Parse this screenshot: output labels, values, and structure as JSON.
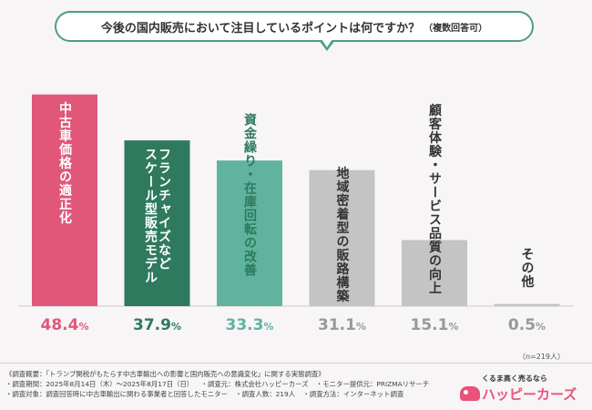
{
  "title": "今後の国内販売において注目しているポイントは何ですか？",
  "title_note": "（複数回答可）",
  "chart_data": {
    "type": "bar",
    "categories": [
      "中古車価格の適正化",
      "フランチャイズなどスケール型販売モデル",
      "資金繰り・在庫回転の改善",
      "地域密着型の販路構築",
      "顧客体験・サービス品質の向上",
      "その他"
    ],
    "label_lines": [
      [
        "中古車価格の適正化"
      ],
      [
        "フランチャイズなど",
        "スケール型販売モデル"
      ],
      [
        "資金繰り・在庫回転の改善"
      ],
      [
        "地域密着型の販路構築"
      ],
      [
        "顧客体験・サービス品質の向上"
      ],
      [
        "その他"
      ]
    ],
    "values": [
      48.4,
      37.9,
      33.3,
      31.1,
      15.1,
      0.5
    ],
    "value_labels": [
      "48.4%",
      "37.9%",
      "33.3%",
      "31.1%",
      "15.1%",
      "0.5%"
    ],
    "colors": [
      "#e0577a",
      "#2f7a5e",
      "#5fb39f",
      "#c4c4c4",
      "#c4c4c4",
      "#c4c4c4"
    ],
    "label_colors": [
      "#ffffff",
      "#ffffff",
      "#2f7a5e",
      "#333333",
      "#333333",
      "#333333"
    ],
    "value_colors": [
      "#e0577a",
      "#2f7a5e",
      "#5fb39f",
      "#999999",
      "#999999",
      "#999999"
    ],
    "ylim": [
      0,
      50
    ],
    "grid": false
  },
  "n_note": "（n=219人）",
  "footer": {
    "line1": "《調査概要：「トランプ関税がもたらす中古車輸出への影響と国内販売への意識変化」に関する実態調査》",
    "line2": [
      "・調査期間：2025年8月14日（木）～2025年8月17日（日）",
      "・調査元：株式会社ハッピーカーズ",
      "・モニター提供元：PRIZMAリサーチ"
    ],
    "line3": [
      "・調査対象：調査回答時に中古車輸出に関わる事業者と回答したモニター",
      "・調査人数：219人",
      "・調査方法：インターネット調査"
    ]
  },
  "logo": {
    "tagline": "くるま高く売るなら",
    "name": "ハッピーカーズ"
  }
}
